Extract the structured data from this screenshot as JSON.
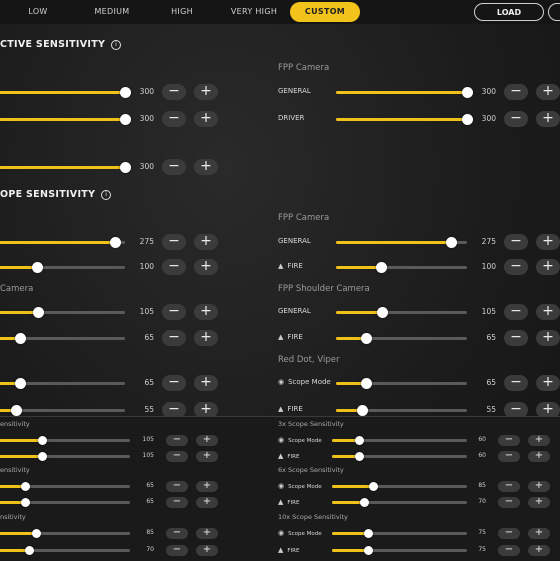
{
  "tabs": [
    {
      "label": "LOW",
      "active": false
    },
    {
      "label": "MEDIUM",
      "active": false
    },
    {
      "label": "HIGH",
      "active": false
    },
    {
      "label": "VERY HIGH",
      "active": false
    },
    {
      "label": "CUSTOM",
      "active": true
    }
  ],
  "load_label": "LOAD",
  "sections": {
    "camera_title": "CTIVE SENSITIVITY",
    "ads_title": "OPE SENSITIVITY"
  },
  "camera_left": [
    {
      "value": 300,
      "fraction": 1.0
    },
    {
      "value": 300,
      "fraction": 1.0
    },
    {
      "value": 300,
      "fraction": 1.0
    }
  ],
  "camera_right": {
    "title": "FPP Camera",
    "rows": [
      {
        "label": "GENERAL",
        "value": 300,
        "fraction": 1.0
      },
      {
        "label": "DRIVER",
        "value": 300,
        "fraction": 1.0
      }
    ]
  },
  "ads_left_top": [
    {
      "value": 275,
      "fraction": 0.92
    },
    {
      "value": 100,
      "fraction": 0.32
    }
  ],
  "ads_left_shoulder": {
    "title": "Camera",
    "rows": [
      {
        "value": 105,
        "fraction": 0.33
      },
      {
        "value": 65,
        "fraction": 0.19
      }
    ]
  },
  "ads_left_reddot": [
    {
      "value": 65,
      "fraction": 0.19
    },
    {
      "value": 55,
      "fraction": 0.16
    }
  ],
  "ads_right_fpp": {
    "title": "FPP Camera",
    "rows": [
      {
        "label": "GENERAL",
        "value": 275,
        "fraction": 0.88
      },
      {
        "label": "FIRE",
        "value": 100,
        "fraction": 0.34
      }
    ]
  },
  "ads_right_shoulder": {
    "title": "FPP Shoulder Camera",
    "rows": [
      {
        "label": "GENERAL",
        "value": 105,
        "fraction": 0.35
      },
      {
        "label": "FIRE",
        "value": 65,
        "fraction": 0.23
      }
    ]
  },
  "ads_right_reddot": {
    "title": "Red Dot, Viper",
    "rows": [
      {
        "label": "Scope Mode",
        "value": 65,
        "fraction": 0.23
      },
      {
        "label": "FIRE",
        "value": 55,
        "fraction": 0.2
      }
    ]
  },
  "bottom_left": [
    {
      "title": "ensitivity",
      "rows": [
        {
          "value": 105,
          "fraction": 0.35
        },
        {
          "value": 105,
          "fraction": 0.35
        }
      ]
    },
    {
      "title": "ensitivity",
      "rows": [
        {
          "value": 65,
          "fraction": 0.22
        },
        {
          "value": 65,
          "fraction": 0.22
        }
      ]
    },
    {
      "title": "nsitivity",
      "rows": [
        {
          "value": 85,
          "fraction": 0.3
        },
        {
          "value": 70,
          "fraction": 0.25
        }
      ]
    }
  ],
  "bottom_right": [
    {
      "title": "3x Scope Sensitivity",
      "rows": [
        {
          "label": "Scope Mode",
          "value": 60,
          "fraction": 0.2
        },
        {
          "label": "FIRE",
          "value": 60,
          "fraction": 0.2
        }
      ]
    },
    {
      "title": "6x Scope Sensitivity",
      "rows": [
        {
          "label": "Scope Mode",
          "value": 85,
          "fraction": 0.3
        },
        {
          "label": "FIRE",
          "value": 70,
          "fraction": 0.24
        }
      ]
    },
    {
      "title": "10x Scope Sensitivity",
      "rows": [
        {
          "label": "Scope Mode",
          "value": 75,
          "fraction": 0.27
        },
        {
          "label": "FIRE",
          "value": 75,
          "fraction": 0.27
        }
      ]
    }
  ],
  "icons": {
    "minus": "−",
    "plus": "+",
    "info": "i",
    "fire": "▲",
    "eye": "◉"
  },
  "colors": {
    "accent": "#efc21a"
  }
}
